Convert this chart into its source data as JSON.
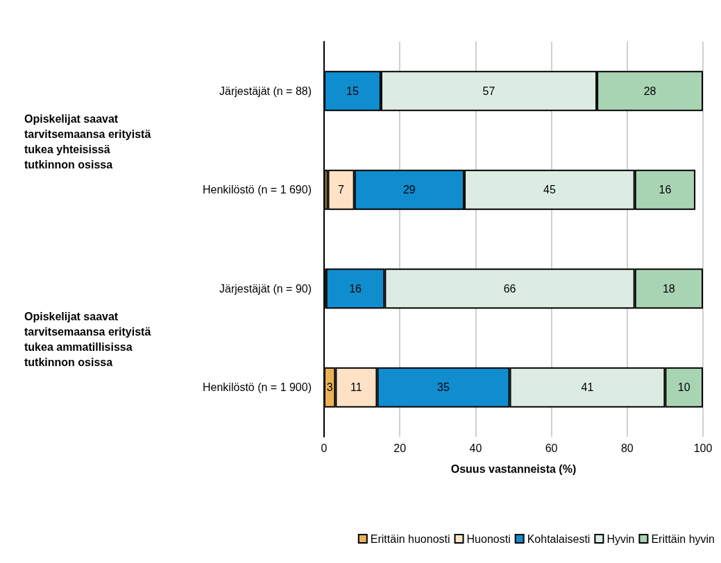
{
  "chart_data": {
    "type": "bar",
    "orientation": "horizontal",
    "stacked": true,
    "categories": [
      "Järjestäjät (n = 88)",
      "Henkilöstö (n = 1 690)",
      "Järjestäjät (n = 90)",
      "Henkilöstö (n = 1 900)"
    ],
    "series": [
      {
        "name": "Erittäin huonosti",
        "color": "#eab257",
        "values": [
          0,
          1,
          0,
          3
        ],
        "value_labels": [
          null,
          null,
          null,
          "3"
        ]
      },
      {
        "name": "Huonosti",
        "color": "#fde2c6",
        "values": [
          0,
          7,
          0.5,
          11
        ],
        "value_labels": [
          null,
          "7",
          null,
          "11"
        ]
      },
      {
        "name": "Kohtalaisesti",
        "color": "#0f8dcf",
        "values": [
          15,
          29,
          15.5,
          35
        ],
        "value_labels": [
          "15",
          "29",
          "16",
          "35"
        ]
      },
      {
        "name": "Hyvin",
        "color": "#dcece2",
        "values": [
          57,
          45,
          66,
          41
        ],
        "value_labels": [
          "57",
          "45",
          "66",
          "41"
        ]
      },
      {
        "name": "Erittäin hyvin",
        "color": "#a9d4b4",
        "values": [
          28,
          16,
          18,
          10
        ],
        "value_labels": [
          "28",
          "16",
          "18",
          "10"
        ]
      }
    ],
    "xlabel": "Osuus vastanneista (%)",
    "xlim": [
      0,
      100
    ],
    "xticks": [
      0,
      20,
      40,
      60,
      80,
      100
    ],
    "grid": "x",
    "legend": "bottom right",
    "annotations": [
      "Opiskelijat saavat tarvitsemaansa erityistä tukea yhteisissä tutkinnon osissa",
      "Opiskelijat saavat tarvitsemaansa erityistä tukea ammatillisissa tutkinnon osissa"
    ]
  }
}
